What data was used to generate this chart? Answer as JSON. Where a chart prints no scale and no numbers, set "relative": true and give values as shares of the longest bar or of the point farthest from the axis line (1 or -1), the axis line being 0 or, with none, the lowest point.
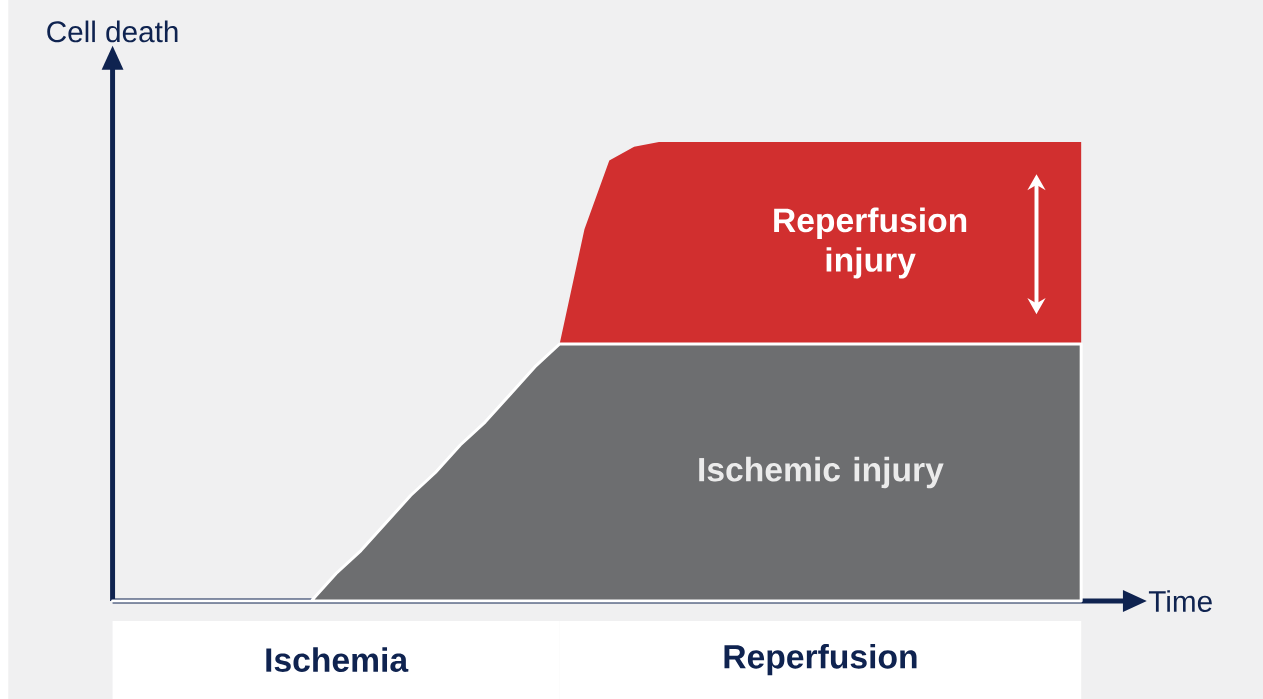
{
  "chart_data": {
    "type": "area",
    "relative": true,
    "stacked": true,
    "xlabel": "Time",
    "ylabel": "Cell death",
    "categories": [
      null,
      null,
      null,
      null,
      null,
      null,
      null,
      null,
      null,
      null,
      null,
      null,
      null,
      null,
      null,
      null,
      null,
      null,
      null,
      null,
      null,
      null,
      null,
      null,
      null,
      null,
      null,
      null,
      null,
      null,
      null,
      null,
      null,
      null,
      null,
      null,
      null,
      null,
      null,
      null
    ],
    "series": [
      {
        "name": "Ischemic injury",
        "color": "#6d6e70",
        "values": [
          0,
          0,
          0,
          0,
          0,
          0,
          0,
          0,
          0,
          0.06,
          0.11,
          0.17,
          0.23,
          0.28,
          0.34,
          0.39,
          0.45,
          0.51,
          0.56,
          0.56,
          0.56,
          0.56,
          0.56,
          0.56,
          0.56,
          0.56,
          0.56,
          0.56,
          0.56,
          0.56,
          0.56,
          0.56,
          0.56,
          0.56,
          0.56,
          0.56,
          0.56,
          0.56,
          0.56,
          0.56
        ]
      },
      {
        "name": "Reperfusion injury",
        "color": "#d12f2f",
        "values": [
          0,
          0,
          0,
          0,
          0,
          0,
          0,
          0,
          0,
          0,
          0,
          0,
          0,
          0,
          0,
          0,
          0,
          0,
          0,
          0.25,
          0.4,
          0.43,
          0.44,
          0.44,
          0.44,
          0.44,
          0.44,
          0.44,
          0.44,
          0.44,
          0.44,
          0.44,
          0.44,
          0.44,
          0.44,
          0.44,
          0.44,
          0.44,
          0.44,
          0.44
        ]
      }
    ],
    "annotations": [
      "Ischemia",
      "Reperfusion"
    ]
  }
}
